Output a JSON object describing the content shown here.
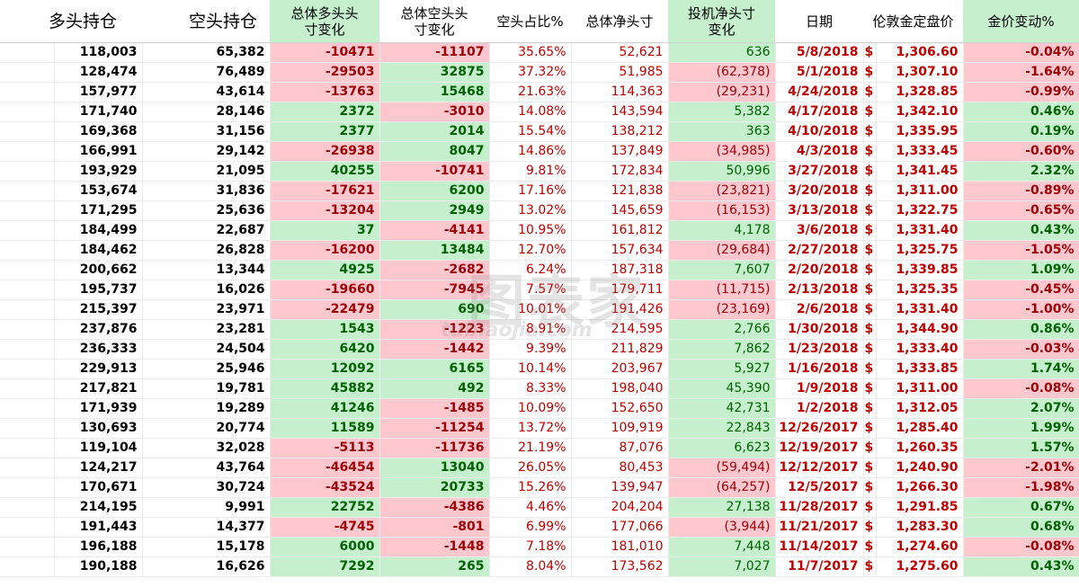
{
  "headers": {
    "long": "多头持仓",
    "short": "空头持仓",
    "long_change": "总体多头头寸变化",
    "short_change": "总体空头头寸变化",
    "short_ratio": "空头占比%",
    "net": "总体净头寸",
    "spec_net_change": "投机净头寸变化",
    "date": "日期",
    "london_fix": "伦敦金定盘价",
    "gold_change": "金价变动%"
  },
  "colors": {
    "green_fill": "#c6efce",
    "red_fill": "#ffc7ce",
    "green_text": "#006100",
    "red_text": "#9c0006",
    "accent_red": "#c00000"
  },
  "watermark": {
    "main": "图表家",
    "sub": "tubiaojia.com"
  },
  "currency_symbol": "$",
  "rows": [
    {
      "long": "118,003",
      "short": "65,382",
      "long_change": "-10471",
      "short_change": "-11107",
      "short_ratio": "35.65%",
      "net": "52,621",
      "spec_net_change": "636",
      "date": "5/8/2018",
      "london_fix": "1,306.60",
      "gold_change": "-0.04%"
    },
    {
      "long": "128,474",
      "short": "76,489",
      "long_change": "-29503",
      "short_change": "32875",
      "short_ratio": "37.32%",
      "net": "51,985",
      "spec_net_change": "(62,378)",
      "date": "5/1/2018",
      "london_fix": "1,307.10",
      "gold_change": "-1.64%"
    },
    {
      "long": "157,977",
      "short": "43,614",
      "long_change": "-13763",
      "short_change": "15468",
      "short_ratio": "21.63%",
      "net": "114,363",
      "spec_net_change": "(29,231)",
      "date": "4/24/2018",
      "london_fix": "1,328.85",
      "gold_change": "-0.99%"
    },
    {
      "long": "171,740",
      "short": "28,146",
      "long_change": "2372",
      "short_change": "-3010",
      "short_ratio": "14.08%",
      "net": "143,594",
      "spec_net_change": "5,382",
      "date": "4/17/2018",
      "london_fix": "1,342.10",
      "gold_change": "0.46%"
    },
    {
      "long": "169,368",
      "short": "31,156",
      "long_change": "2377",
      "short_change": "2014",
      "short_ratio": "15.54%",
      "net": "138,212",
      "spec_net_change": "363",
      "date": "4/10/2018",
      "london_fix": "1,335.95",
      "gold_change": "0.19%"
    },
    {
      "long": "166,991",
      "short": "29,142",
      "long_change": "-26938",
      "short_change": "8047",
      "short_ratio": "14.86%",
      "net": "137,849",
      "spec_net_change": "(34,985)",
      "date": "4/3/2018",
      "london_fix": "1,333.45",
      "gold_change": "-0.60%"
    },
    {
      "long": "193,929",
      "short": "21,095",
      "long_change": "40255",
      "short_change": "-10741",
      "short_ratio": "9.81%",
      "net": "172,834",
      "spec_net_change": "50,996",
      "date": "3/27/2018",
      "london_fix": "1,341.45",
      "gold_change": "2.32%"
    },
    {
      "long": "153,674",
      "short": "31,836",
      "long_change": "-17621",
      "short_change": "6200",
      "short_ratio": "17.16%",
      "net": "121,838",
      "spec_net_change": "(23,821)",
      "date": "3/20/2018",
      "london_fix": "1,311.00",
      "gold_change": "-0.89%"
    },
    {
      "long": "171,295",
      "short": "25,636",
      "long_change": "-13204",
      "short_change": "2949",
      "short_ratio": "13.02%",
      "net": "145,659",
      "spec_net_change": "(16,153)",
      "date": "3/13/2018",
      "london_fix": "1,322.75",
      "gold_change": "-0.65%"
    },
    {
      "long": "184,499",
      "short": "22,687",
      "long_change": "37",
      "short_change": "-4141",
      "short_ratio": "10.95%",
      "net": "161,812",
      "spec_net_change": "4,178",
      "date": "3/6/2018",
      "london_fix": "1,331.40",
      "gold_change": "0.43%"
    },
    {
      "long": "184,462",
      "short": "26,828",
      "long_change": "-16200",
      "short_change": "13484",
      "short_ratio": "12.70%",
      "net": "157,634",
      "spec_net_change": "(29,684)",
      "date": "2/27/2018",
      "london_fix": "1,325.75",
      "gold_change": "-1.05%"
    },
    {
      "long": "200,662",
      "short": "13,344",
      "long_change": "4925",
      "short_change": "-2682",
      "short_ratio": "6.24%",
      "net": "187,318",
      "spec_net_change": "7,607",
      "date": "2/20/2018",
      "london_fix": "1,339.85",
      "gold_change": "1.09%"
    },
    {
      "long": "195,737",
      "short": "16,026",
      "long_change": "-19660",
      "short_change": "-7945",
      "short_ratio": "7.57%",
      "net": "179,711",
      "spec_net_change": "(11,715)",
      "date": "2/13/2018",
      "london_fix": "1,325.35",
      "gold_change": "-0.45%"
    },
    {
      "long": "215,397",
      "short": "23,971",
      "long_change": "-22479",
      "short_change": "690",
      "short_ratio": "10.01%",
      "net": "191,426",
      "spec_net_change": "(23,169)",
      "date": "2/6/2018",
      "london_fix": "1,331.40",
      "gold_change": "-1.00%"
    },
    {
      "long": "237,876",
      "short": "23,281",
      "long_change": "1543",
      "short_change": "-1223",
      "short_ratio": "8.91%",
      "net": "214,595",
      "spec_net_change": "2,766",
      "date": "1/30/2018",
      "london_fix": "1,344.90",
      "gold_change": "0.86%"
    },
    {
      "long": "236,333",
      "short": "24,504",
      "long_change": "6420",
      "short_change": "-1442",
      "short_ratio": "9.39%",
      "net": "211,829",
      "spec_net_change": "7,862",
      "date": "1/23/2018",
      "london_fix": "1,333.40",
      "gold_change": "-0.03%"
    },
    {
      "long": "229,913",
      "short": "25,946",
      "long_change": "12092",
      "short_change": "6165",
      "short_ratio": "10.14%",
      "net": "203,967",
      "spec_net_change": "5,927",
      "date": "1/16/2018",
      "london_fix": "1,333.85",
      "gold_change": "1.74%"
    },
    {
      "long": "217,821",
      "short": "19,781",
      "long_change": "45882",
      "short_change": "492",
      "short_ratio": "8.33%",
      "net": "198,040",
      "spec_net_change": "45,390",
      "date": "1/9/2018",
      "london_fix": "1,311.00",
      "gold_change": "-0.08%"
    },
    {
      "long": "171,939",
      "short": "19,289",
      "long_change": "41246",
      "short_change": "-1485",
      "short_ratio": "10.09%",
      "net": "152,650",
      "spec_net_change": "42,731",
      "date": "1/2/2018",
      "london_fix": "1,312.05",
      "gold_change": "2.07%"
    },
    {
      "long": "130,693",
      "short": "20,774",
      "long_change": "11589",
      "short_change": "-11254",
      "short_ratio": "13.72%",
      "net": "109,919",
      "spec_net_change": "22,843",
      "date": "12/26/2017",
      "london_fix": "1,285.40",
      "gold_change": "1.99%"
    },
    {
      "long": "119,104",
      "short": "32,028",
      "long_change": "-5113",
      "short_change": "-11736",
      "short_ratio": "21.19%",
      "net": "87,076",
      "spec_net_change": "6,623",
      "date": "12/19/2017",
      "london_fix": "1,260.35",
      "gold_change": "1.57%"
    },
    {
      "long": "124,217",
      "short": "43,764",
      "long_change": "-46454",
      "short_change": "13040",
      "short_ratio": "26.05%",
      "net": "80,453",
      "spec_net_change": "(59,494)",
      "date": "12/12/2017",
      "london_fix": "1,240.90",
      "gold_change": "-2.01%"
    },
    {
      "long": "170,671",
      "short": "30,724",
      "long_change": "-43524",
      "short_change": "20733",
      "short_ratio": "15.26%",
      "net": "139,947",
      "spec_net_change": "(64,257)",
      "date": "12/5/2017",
      "london_fix": "1,266.30",
      "gold_change": "-1.98%"
    },
    {
      "long": "214,195",
      "short": "9,991",
      "long_change": "22752",
      "short_change": "-4386",
      "short_ratio": "4.46%",
      "net": "204,204",
      "spec_net_change": "27,138",
      "date": "11/28/2017",
      "london_fix": "1,291.85",
      "gold_change": "0.67%"
    },
    {
      "long": "191,443",
      "short": "14,377",
      "long_change": "-4745",
      "short_change": "-801",
      "short_ratio": "6.99%",
      "net": "177,066",
      "spec_net_change": "(3,944)",
      "date": "11/21/2017",
      "london_fix": "1,283.30",
      "gold_change": "0.68%"
    },
    {
      "long": "196,188",
      "short": "15,178",
      "long_change": "6000",
      "short_change": "-1448",
      "short_ratio": "7.18%",
      "net": "181,010",
      "spec_net_change": "7,448",
      "date": "11/14/2017",
      "london_fix": "1,274.60",
      "gold_change": "-0.08%"
    },
    {
      "long": "190,188",
      "short": "16,626",
      "long_change": "7292",
      "short_change": "265",
      "short_ratio": "8.04%",
      "net": "173,562",
      "spec_net_change": "7,027",
      "date": "11/7/2017",
      "london_fix": "1,275.60",
      "gold_change": "0.43%"
    }
  ]
}
